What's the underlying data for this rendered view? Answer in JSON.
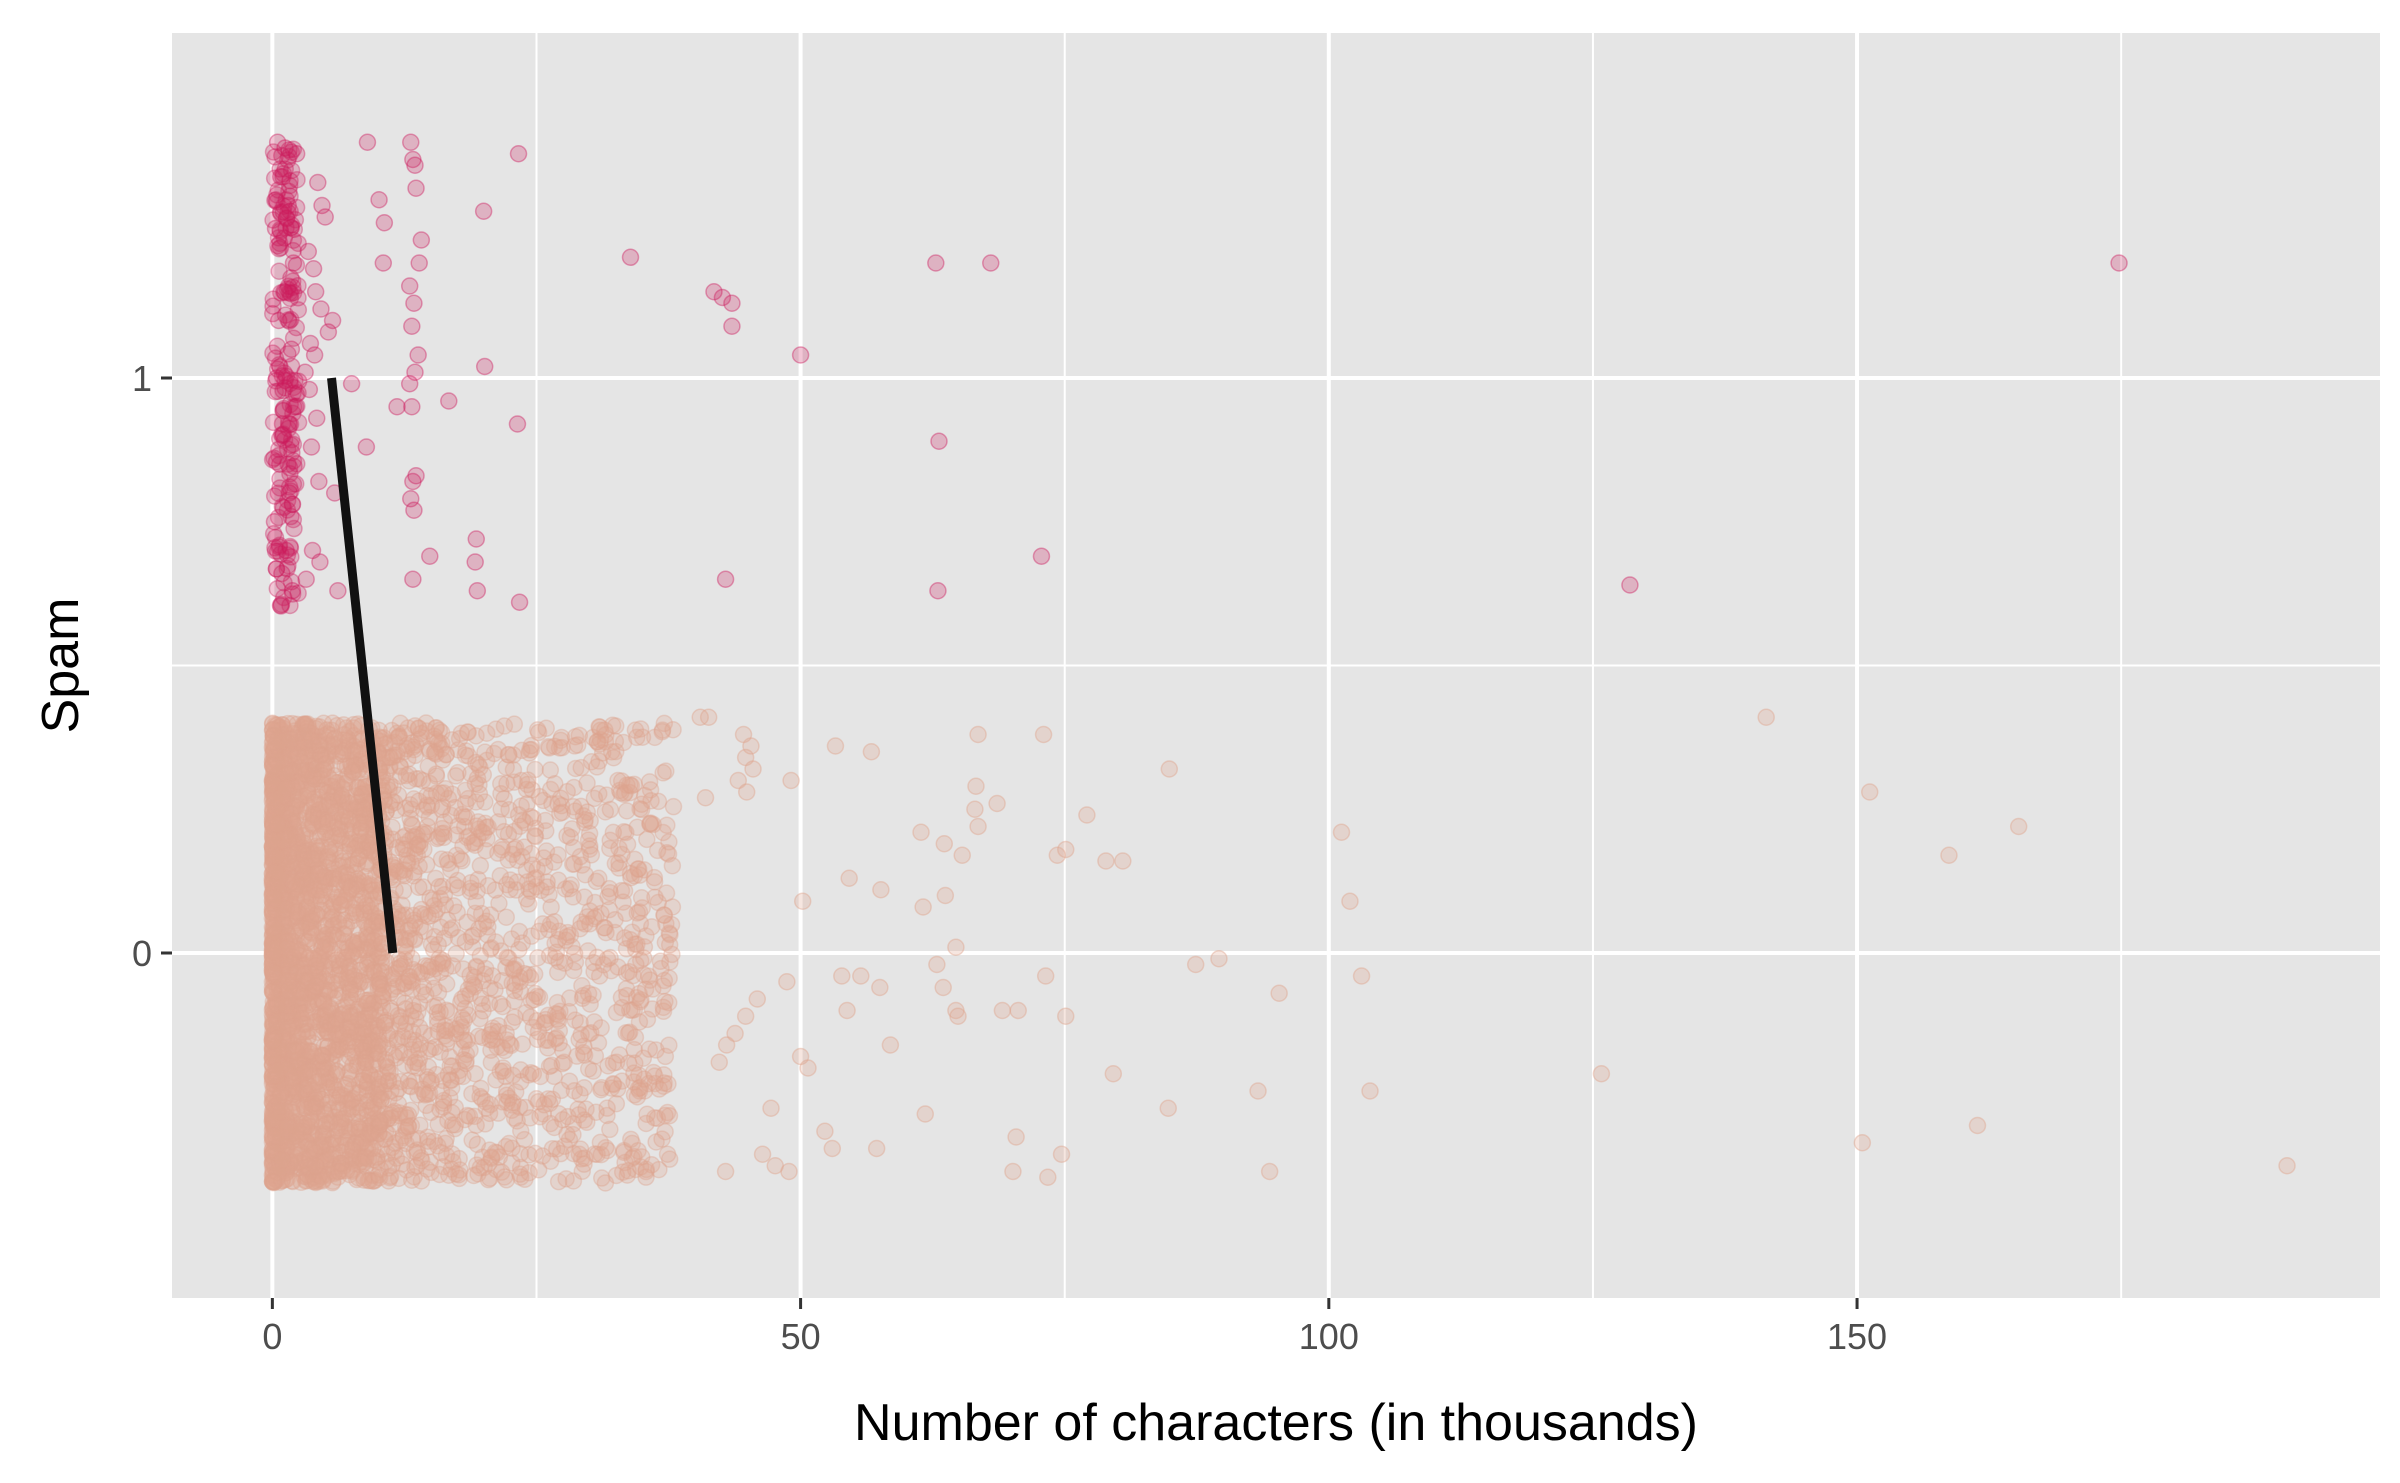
{
  "chart_data": {
    "type": "scatter",
    "title": "",
    "xlabel": "Number of characters (in thousands)",
    "ylabel": "Spam",
    "xlim": [
      -9.5,
      199.5
    ],
    "ylim": [
      -0.6,
      1.6
    ],
    "x_ticks": [
      0,
      50,
      100,
      150
    ],
    "y_ticks": [
      0,
      1
    ],
    "x_minor_ticks": [
      25,
      75,
      125,
      175
    ],
    "y_minor_ticks": [
      0.5
    ],
    "grid": true,
    "jitter_height": 0.4,
    "colors": {
      "spam_points": "#cc1a5c",
      "not_spam_points": "#dea48e",
      "fit_line": "#111111",
      "panel_background": "#e5e5e5",
      "grid": "#ffffff"
    },
    "fit_line": {
      "x": [
        5.6,
        11.4
      ],
      "y": [
        1,
        0
      ]
    },
    "series": [
      {
        "label": "1",
        "dense_x_range": [
          0,
          2.5
        ],
        "points": [
          [
            0.5,
            1.41
          ],
          [
            1.2,
            1.4
          ],
          [
            2.3,
            1.39
          ],
          [
            0.8,
            1.35
          ],
          [
            1.5,
            1.3
          ],
          [
            0.3,
            1.26
          ],
          [
            2.0,
            1.2
          ],
          [
            1.1,
            1.15
          ],
          [
            0.6,
            1.1
          ],
          [
            1.8,
            1.05
          ],
          [
            0.4,
            1.0
          ],
          [
            2.2,
            0.95
          ],
          [
            1.0,
            0.9
          ],
          [
            0.7,
            0.85
          ],
          [
            1.6,
            0.8
          ],
          [
            0.2,
            0.75
          ],
          [
            1.3,
            0.7
          ],
          [
            0.9,
            0.66
          ],
          [
            1.9,
            0.63
          ],
          [
            4.3,
            1.34
          ],
          [
            4.7,
            1.3
          ],
          [
            5.0,
            1.28
          ],
          [
            3.4,
            1.22
          ],
          [
            3.9,
            1.19
          ],
          [
            4.1,
            1.15
          ],
          [
            4.6,
            1.12
          ],
          [
            5.3,
            1.08
          ],
          [
            3.6,
            1.06
          ],
          [
            4.0,
            1.04
          ],
          [
            5.7,
            1.1
          ],
          [
            3.1,
            1.01
          ],
          [
            3.5,
            0.98
          ],
          [
            4.2,
            0.93
          ],
          [
            3.7,
            0.88
          ],
          [
            4.4,
            0.82
          ],
          [
            5.9,
            0.8
          ],
          [
            3.8,
            0.7
          ],
          [
            4.5,
            0.68
          ],
          [
            3.2,
            0.65
          ],
          [
            6.2,
            0.63
          ],
          [
            9.0,
            1.41
          ],
          [
            13.1,
            1.41
          ],
          [
            13.3,
            1.38
          ],
          [
            13.5,
            1.37
          ],
          [
            13.6,
            1.33
          ],
          [
            10.1,
            1.31
          ],
          [
            10.6,
            1.27
          ],
          [
            14.1,
            1.24
          ],
          [
            10.5,
            1.2
          ],
          [
            13.9,
            1.2
          ],
          [
            13.0,
            1.16
          ],
          [
            13.4,
            1.13
          ],
          [
            13.2,
            1.09
          ],
          [
            13.8,
            1.04
          ],
          [
            13.5,
            1.01
          ],
          [
            13.0,
            0.99
          ],
          [
            11.8,
            0.95
          ],
          [
            13.2,
            0.95
          ],
          [
            13.6,
            0.83
          ],
          [
            13.3,
            0.82
          ],
          [
            13.1,
            0.79
          ],
          [
            13.4,
            0.77
          ],
          [
            14.9,
            0.69
          ],
          [
            13.3,
            0.65
          ],
          [
            16.7,
            0.96
          ],
          [
            8.9,
            0.88
          ],
          [
            7.5,
            0.99
          ],
          [
            23.3,
            1.39
          ],
          [
            20.0,
            1.29
          ],
          [
            20.1,
            1.02
          ],
          [
            23.2,
            0.92
          ],
          [
            19.3,
            0.72
          ],
          [
            19.2,
            0.68
          ],
          [
            19.4,
            0.63
          ],
          [
            23.4,
            0.61
          ],
          [
            33.9,
            1.21
          ],
          [
            41.8,
            1.15
          ],
          [
            42.6,
            1.14
          ],
          [
            43.5,
            1.13
          ],
          [
            43.5,
            1.09
          ],
          [
            50.0,
            1.04
          ],
          [
            42.9,
            0.65
          ],
          [
            62.8,
            1.2
          ],
          [
            68.0,
            1.2
          ],
          [
            63.1,
            0.89
          ],
          [
            63.0,
            0.63
          ],
          [
            72.8,
            0.69
          ],
          [
            128.5,
            0.64
          ],
          [
            174.8,
            1.2
          ]
        ]
      },
      {
        "label": "0",
        "dense_x_range": [
          0,
          10
        ],
        "points": [
          [
            40.5,
            0.41
          ],
          [
            41.3,
            0.41
          ],
          [
            44.6,
            0.38
          ],
          [
            45.3,
            0.36
          ],
          [
            44.8,
            0.34
          ],
          [
            45.5,
            0.32
          ],
          [
            44.1,
            0.3
          ],
          [
            44.9,
            0.28
          ],
          [
            41.0,
            0.27
          ],
          [
            49.1,
            0.3
          ],
          [
            53.3,
            0.36
          ],
          [
            56.7,
            0.35
          ],
          [
            66.8,
            0.38
          ],
          [
            73.0,
            0.38
          ],
          [
            84.9,
            0.32
          ],
          [
            66.6,
            0.29
          ],
          [
            68.6,
            0.26
          ],
          [
            66.5,
            0.25
          ],
          [
            66.8,
            0.22
          ],
          [
            65.3,
            0.17
          ],
          [
            61.4,
            0.21
          ],
          [
            63.6,
            0.19
          ],
          [
            74.3,
            0.17
          ],
          [
            75.1,
            0.18
          ],
          [
            77.1,
            0.24
          ],
          [
            78.9,
            0.16
          ],
          [
            80.5,
            0.16
          ],
          [
            54.6,
            0.13
          ],
          [
            57.6,
            0.11
          ],
          [
            61.6,
            0.08
          ],
          [
            63.7,
            0.1
          ],
          [
            64.7,
            0.01
          ],
          [
            50.2,
            0.09
          ],
          [
            62.9,
            -0.02
          ],
          [
            63.5,
            -0.06
          ],
          [
            64.7,
            -0.1
          ],
          [
            64.9,
            -0.11
          ],
          [
            53.9,
            -0.04
          ],
          [
            55.7,
            -0.04
          ],
          [
            57.5,
            -0.06
          ],
          [
            54.4,
            -0.1
          ],
          [
            58.5,
            -0.16
          ],
          [
            50.0,
            -0.18
          ],
          [
            50.7,
            -0.2
          ],
          [
            48.7,
            -0.05
          ],
          [
            45.9,
            -0.08
          ],
          [
            44.8,
            -0.11
          ],
          [
            43.8,
            -0.14
          ],
          [
            43.0,
            -0.16
          ],
          [
            42.3,
            -0.19
          ],
          [
            47.2,
            -0.27
          ],
          [
            52.3,
            -0.31
          ],
          [
            53.0,
            -0.34
          ],
          [
            57.2,
            -0.34
          ],
          [
            61.8,
            -0.28
          ],
          [
            46.4,
            -0.35
          ],
          [
            47.6,
            -0.37
          ],
          [
            48.9,
            -0.38
          ],
          [
            42.9,
            -0.38
          ],
          [
            69.1,
            -0.1
          ],
          [
            70.6,
            -0.1
          ],
          [
            73.2,
            -0.04
          ],
          [
            75.1,
            -0.11
          ],
          [
            70.4,
            -0.32
          ],
          [
            74.7,
            -0.35
          ],
          [
            70.1,
            -0.38
          ],
          [
            73.4,
            -0.39
          ],
          [
            87.4,
            -0.02
          ],
          [
            89.6,
            -0.01
          ],
          [
            95.3,
            -0.07
          ],
          [
            79.6,
            -0.21
          ],
          [
            84.8,
            -0.27
          ],
          [
            93.3,
            -0.24
          ],
          [
            94.4,
            -0.38
          ],
          [
            103.1,
            -0.04
          ],
          [
            103.9,
            -0.24
          ],
          [
            101.2,
            0.21
          ],
          [
            102.0,
            0.09
          ],
          [
            125.8,
            -0.21
          ],
          [
            141.4,
            0.41
          ],
          [
            151.2,
            0.28
          ],
          [
            158.7,
            0.17
          ],
          [
            165.3,
            0.22
          ],
          [
            150.5,
            -0.33
          ],
          [
            161.4,
            -0.3
          ],
          [
            190.7,
            -0.37
          ]
        ]
      }
    ]
  }
}
